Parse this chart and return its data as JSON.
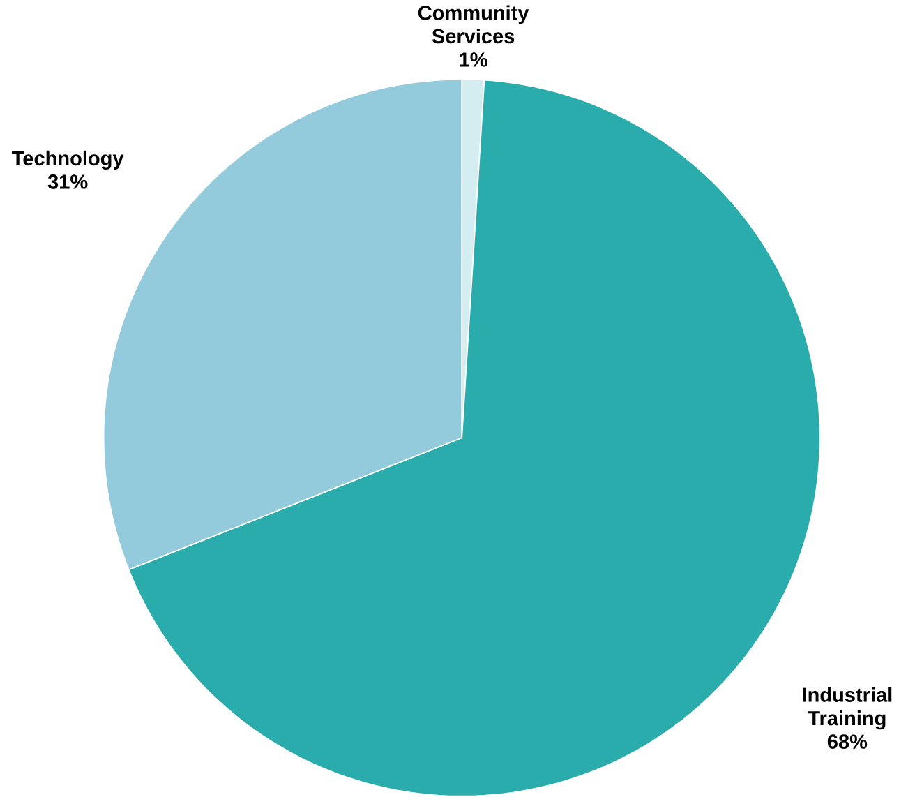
{
  "chart_data": {
    "type": "pie",
    "categories": [
      "Community Services",
      "Industrial Training",
      "Technology"
    ],
    "values": [
      1,
      68,
      31
    ],
    "value_labels": [
      "1%",
      "68%",
      "31%"
    ],
    "colors": [
      "#d4edf1",
      "#2aacad",
      "#93cbdc"
    ]
  }
}
